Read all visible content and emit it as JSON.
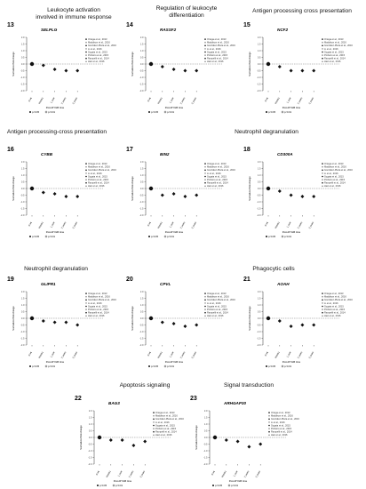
{
  "headings": [
    "Leukocyte activation",
    "involved in immune response",
    "Regulation of leukocyte",
    "differentiation",
    "Antigen processing cross presentation",
    "Antigen processing-cross presentation",
    "Neutrophil degranulation",
    "Neutrophil degranulation",
    "Phagocytic cells",
    "Apoptosis signaling",
    "Signal transduction"
  ],
  "legend_studies": [
    "Ortega et al., 2013",
    "Maddison et al., 2016",
    "González-Plaza et al., 2016",
    "Li et al., 2016",
    "Sugata et al., 2015",
    "Pinheiro et al., 2015",
    "Rampelli et al., 2014",
    "Hart et al., 2016"
  ],
  "x_categories": [
    "0 wk",
    "Week1",
    "1 year",
    "2 years",
    "3 years"
  ],
  "x_axis_label": "Post-RYGB time",
  "y_axis_label": "Normalized fold-change",
  "y_ticks": [
    "2.0",
    "1.5",
    "1.0",
    "0.5",
    "0.0",
    "-0.5",
    "-1.0",
    "-1.5",
    "-2.0"
  ],
  "sig_legend": [
    "p<0.05",
    "p<0.01"
  ],
  "chart_data": [
    {
      "type": "scatter",
      "panel": "13",
      "gene": "SELPLG",
      "y_range": [
        -2,
        2
      ],
      "x": [
        "0 wk",
        "Week1",
        "1 year",
        "2 years",
        "3 years"
      ],
      "series": [
        {
          "values": [
            0.0,
            -0.1,
            -0.4,
            -0.5,
            -0.5
          ]
        }
      ]
    },
    {
      "type": "scatter",
      "panel": "14",
      "gene": "RASSF2",
      "y_range": [
        -2,
        2
      ],
      "x": [
        "0 wk",
        "Week1",
        "1 year",
        "2 years",
        "3 years"
      ],
      "series": [
        {
          "values": [
            0.0,
            -0.2,
            -0.4,
            -0.5,
            -0.5
          ]
        }
      ]
    },
    {
      "type": "scatter",
      "panel": "15",
      "gene": "NCF2",
      "y_range": [
        -2,
        2
      ],
      "x": [
        "0 wk",
        "Week1",
        "1 year",
        "2 years",
        "3 years"
      ],
      "series": [
        {
          "values": [
            0.0,
            -0.2,
            -0.5,
            -0.5,
            -0.5
          ]
        }
      ]
    },
    {
      "type": "scatter",
      "panel": "16",
      "gene": "CYBB",
      "y_range": [
        -2,
        2
      ],
      "x": [
        "0 wk",
        "Week1",
        "1 year",
        "2 years",
        "3 years"
      ],
      "series": [
        {
          "values": [
            0.0,
            -0.3,
            -0.4,
            -0.6,
            -0.6
          ]
        }
      ]
    },
    {
      "type": "scatter",
      "panel": "17",
      "gene": "BIN2",
      "y_range": [
        -2,
        2
      ],
      "x": [
        "0 wk",
        "Week1",
        "1 year",
        "2 years",
        "3 years"
      ],
      "series": [
        {
          "values": [
            0.0,
            -0.5,
            -0.4,
            -0.6,
            -0.5
          ]
        }
      ]
    },
    {
      "type": "scatter",
      "panel": "18",
      "gene": "CD300A",
      "y_range": [
        -2,
        2
      ],
      "x": [
        "0 wk",
        "Week1",
        "1 year",
        "2 years",
        "3 years"
      ],
      "series": [
        {
          "values": [
            0.0,
            -0.2,
            -0.5,
            -0.6,
            -0.6
          ]
        }
      ]
    },
    {
      "type": "scatter",
      "panel": "19",
      "gene": "GLIPR1",
      "y_range": [
        -2,
        2
      ],
      "x": [
        "0 wk",
        "Week1",
        "1 year",
        "2 years",
        "3 years"
      ],
      "series": [
        {
          "values": [
            0.0,
            -0.2,
            -0.3,
            -0.3,
            -0.5
          ]
        }
      ]
    },
    {
      "type": "scatter",
      "panel": "20",
      "gene": "CPVL",
      "y_range": [
        -2,
        2
      ],
      "x": [
        "0 wk",
        "Week1",
        "1 year",
        "2 years",
        "3 years"
      ],
      "series": [
        {
          "values": [
            0.0,
            -0.3,
            -0.4,
            -0.6,
            -0.5
          ]
        }
      ]
    },
    {
      "type": "scatter",
      "panel": "21",
      "gene": "AOAH",
      "y_range": [
        -2,
        2
      ],
      "x": [
        "0 wk",
        "Week1",
        "1 year",
        "2 years",
        "3 years"
      ],
      "series": [
        {
          "values": [
            0.0,
            -0.2,
            -0.6,
            -0.5,
            -0.5
          ]
        }
      ]
    },
    {
      "type": "scatter",
      "panel": "22",
      "gene": "BAG3",
      "y_range": [
        -2,
        2
      ],
      "x": [
        "0 wk",
        "Week1",
        "1 year",
        "2 years",
        "3 years"
      ],
      "series": [
        {
          "values": [
            0.0,
            -0.2,
            -0.2,
            -0.6,
            -0.3
          ]
        }
      ]
    },
    {
      "type": "scatter",
      "panel": "23",
      "gene": "ARHGAP30",
      "y_range": [
        -2,
        2
      ],
      "x": [
        "0 wk",
        "Week1",
        "1 year",
        "2 years",
        "3 years"
      ],
      "series": [
        {
          "values": [
            0.0,
            -0.2,
            -0.3,
            -0.7,
            -0.5
          ]
        }
      ]
    }
  ]
}
